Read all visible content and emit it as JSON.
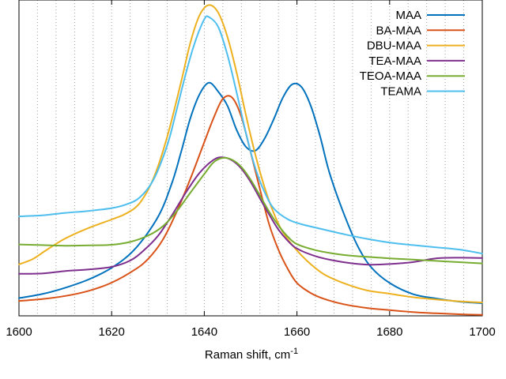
{
  "chart_data": {
    "type": "line",
    "title": "",
    "xlabel": "Raman shift, cm",
    "xlabel_sup": "-1",
    "ylabel": "",
    "xlim": [
      1600,
      1700
    ],
    "ylim": [
      0,
      1
    ],
    "x_ticks": [
      1600,
      1620,
      1640,
      1660,
      1680,
      1700
    ],
    "x_tick_labels": [
      "1600",
      "1620",
      "1640",
      "1660",
      "1680",
      "1700"
    ],
    "x_minor_grid": [
      1604,
      1608,
      1612,
      1616,
      1624,
      1628,
      1632,
      1636,
      1644,
      1648,
      1652,
      1656,
      1664,
      1668,
      1672,
      1676,
      1684,
      1688,
      1692,
      1696
    ],
    "grid": "vertical dotted",
    "legend_position": "top-right",
    "series": [
      {
        "name": "MAA",
        "color": "#0072bd",
        "points": [
          [
            1600,
            0.056
          ],
          [
            1605,
            0.069
          ],
          [
            1610,
            0.089
          ],
          [
            1615,
            0.115
          ],
          [
            1620,
            0.152
          ],
          [
            1625,
            0.211
          ],
          [
            1630,
            0.313
          ],
          [
            1633,
            0.42
          ],
          [
            1635,
            0.519
          ],
          [
            1637,
            0.626
          ],
          [
            1639,
            0.702
          ],
          [
            1641,
            0.738
          ],
          [
            1643,
            0.71
          ],
          [
            1645,
            0.665
          ],
          [
            1647,
            0.588
          ],
          [
            1649,
            0.535
          ],
          [
            1651,
            0.523
          ],
          [
            1653,
            0.561
          ],
          [
            1655,
            0.623
          ],
          [
            1657,
            0.692
          ],
          [
            1659,
            0.733
          ],
          [
            1661,
            0.724
          ],
          [
            1663,
            0.664
          ],
          [
            1665,
            0.568
          ],
          [
            1667,
            0.454
          ],
          [
            1670,
            0.328
          ],
          [
            1673,
            0.224
          ],
          [
            1676,
            0.154
          ],
          [
            1680,
            0.104
          ],
          [
            1685,
            0.069
          ],
          [
            1690,
            0.055
          ],
          [
            1695,
            0.045
          ],
          [
            1700,
            0.04
          ]
        ]
      },
      {
        "name": "BA-MAA",
        "color": "#d95319",
        "points": [
          [
            1600,
            0.047
          ],
          [
            1605,
            0.053
          ],
          [
            1610,
            0.063
          ],
          [
            1615,
            0.079
          ],
          [
            1620,
            0.105
          ],
          [
            1625,
            0.146
          ],
          [
            1628,
            0.182
          ],
          [
            1631,
            0.24
          ],
          [
            1634,
            0.328
          ],
          [
            1637,
            0.434
          ],
          [
            1640,
            0.55
          ],
          [
            1642,
            0.626
          ],
          [
            1644,
            0.687
          ],
          [
            1646,
            0.691
          ],
          [
            1648,
            0.63
          ],
          [
            1650,
            0.518
          ],
          [
            1652,
            0.402
          ],
          [
            1654,
            0.29
          ],
          [
            1656,
            0.209
          ],
          [
            1658,
            0.149
          ],
          [
            1660,
            0.104
          ],
          [
            1663,
            0.072
          ],
          [
            1666,
            0.053
          ],
          [
            1670,
            0.037
          ],
          [
            1675,
            0.025
          ],
          [
            1680,
            0.018
          ],
          [
            1685,
            0.012
          ],
          [
            1690,
            0.008
          ],
          [
            1695,
            0.005
          ],
          [
            1700,
            0.003
          ]
        ]
      },
      {
        "name": "DBU-MAA",
        "color": "#edb120",
        "points": [
          [
            1600,
            0.163
          ],
          [
            1603,
            0.18
          ],
          [
            1606,
            0.209
          ],
          [
            1610,
            0.245
          ],
          [
            1615,
            0.278
          ],
          [
            1620,
            0.305
          ],
          [
            1623,
            0.323
          ],
          [
            1626,
            0.356
          ],
          [
            1629,
            0.434
          ],
          [
            1632,
            0.567
          ],
          [
            1635,
            0.741
          ],
          [
            1637,
            0.865
          ],
          [
            1639,
            0.952
          ],
          [
            1641,
            0.984
          ],
          [
            1643,
            0.96
          ],
          [
            1645,
            0.883
          ],
          [
            1647,
            0.769
          ],
          [
            1649,
            0.635
          ],
          [
            1651,
            0.511
          ],
          [
            1653,
            0.407
          ],
          [
            1655,
            0.325
          ],
          [
            1657,
            0.264
          ],
          [
            1660,
            0.207
          ],
          [
            1663,
            0.163
          ],
          [
            1666,
            0.13
          ],
          [
            1670,
            0.104
          ],
          [
            1675,
            0.081
          ],
          [
            1680,
            0.07
          ],
          [
            1685,
            0.059
          ],
          [
            1690,
            0.052
          ],
          [
            1695,
            0.046
          ],
          [
            1700,
            0.042
          ]
        ]
      },
      {
        "name": "TEA-MAA",
        "color": "#7e2f8e",
        "points": [
          [
            1600,
            0.133
          ],
          [
            1605,
            0.134
          ],
          [
            1610,
            0.142
          ],
          [
            1615,
            0.147
          ],
          [
            1620,
            0.155
          ],
          [
            1624,
            0.175
          ],
          [
            1627,
            0.208
          ],
          [
            1630,
            0.253
          ],
          [
            1633,
            0.318
          ],
          [
            1636,
            0.39
          ],
          [
            1639,
            0.453
          ],
          [
            1642,
            0.494
          ],
          [
            1644,
            0.502
          ],
          [
            1646,
            0.492
          ],
          [
            1648,
            0.466
          ],
          [
            1650,
            0.424
          ],
          [
            1652,
            0.372
          ],
          [
            1654,
            0.321
          ],
          [
            1656,
            0.273
          ],
          [
            1658,
            0.238
          ],
          [
            1660,
            0.213
          ],
          [
            1664,
            0.189
          ],
          [
            1668,
            0.175
          ],
          [
            1672,
            0.166
          ],
          [
            1676,
            0.162
          ],
          [
            1680,
            0.164
          ],
          [
            1685,
            0.17
          ],
          [
            1690,
            0.182
          ],
          [
            1695,
            0.184
          ],
          [
            1700,
            0.183
          ]
        ]
      },
      {
        "name": "TEOA-MAA",
        "color": "#77ac30",
        "points": [
          [
            1600,
            0.226
          ],
          [
            1605,
            0.224
          ],
          [
            1610,
            0.222
          ],
          [
            1615,
            0.223
          ],
          [
            1620,
            0.225
          ],
          [
            1624,
            0.234
          ],
          [
            1628,
            0.255
          ],
          [
            1631,
            0.283
          ],
          [
            1634,
            0.33
          ],
          [
            1637,
            0.39
          ],
          [
            1640,
            0.449
          ],
          [
            1642,
            0.486
          ],
          [
            1644,
            0.5
          ],
          [
            1646,
            0.494
          ],
          [
            1648,
            0.471
          ],
          [
            1650,
            0.431
          ],
          [
            1652,
            0.381
          ],
          [
            1654,
            0.33
          ],
          [
            1656,
            0.286
          ],
          [
            1658,
            0.251
          ],
          [
            1660,
            0.227
          ],
          [
            1664,
            0.208
          ],
          [
            1668,
            0.197
          ],
          [
            1672,
            0.19
          ],
          [
            1676,
            0.186
          ],
          [
            1680,
            0.182
          ],
          [
            1685,
            0.178
          ],
          [
            1690,
            0.174
          ],
          [
            1695,
            0.17
          ],
          [
            1700,
            0.166
          ]
        ]
      },
      {
        "name": "TEAMA",
        "color": "#4dbeee",
        "points": [
          [
            1600,
            0.315
          ],
          [
            1605,
            0.318
          ],
          [
            1610,
            0.326
          ],
          [
            1615,
            0.332
          ],
          [
            1620,
            0.341
          ],
          [
            1623,
            0.352
          ],
          [
            1626,
            0.374
          ],
          [
            1629,
            0.43
          ],
          [
            1632,
            0.54
          ],
          [
            1634,
            0.65
          ],
          [
            1636,
            0.767
          ],
          [
            1638,
            0.867
          ],
          [
            1640,
            0.939
          ],
          [
            1641,
            0.946
          ],
          [
            1643,
            0.915
          ],
          [
            1645,
            0.826
          ],
          [
            1647,
            0.706
          ],
          [
            1649,
            0.578
          ],
          [
            1651,
            0.468
          ],
          [
            1653,
            0.392
          ],
          [
            1655,
            0.34
          ],
          [
            1658,
            0.306
          ],
          [
            1661,
            0.29
          ],
          [
            1665,
            0.276
          ],
          [
            1670,
            0.259
          ],
          [
            1675,
            0.244
          ],
          [
            1680,
            0.232
          ],
          [
            1685,
            0.224
          ],
          [
            1690,
            0.217
          ],
          [
            1695,
            0.21
          ],
          [
            1700,
            0.197
          ]
        ]
      }
    ]
  }
}
